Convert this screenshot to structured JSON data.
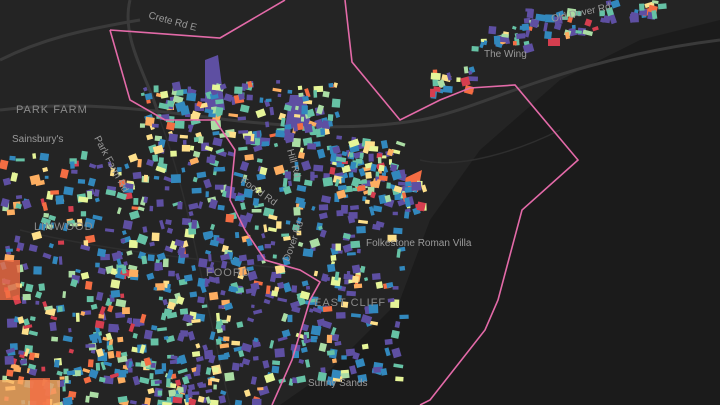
{
  "labels": {
    "crete_rd": "Crete Rd E",
    "old_dover_rd": "Old Dover Rd",
    "the_wing": "The Wing",
    "park_farm": "PARK FARM",
    "sainsburys": "Sainsbury's",
    "park_farm_rd": "Park Farm Rd",
    "hill_rd": "Hill Rd",
    "foord_rd": "Foord Rd",
    "dover_rd": "Dover Rd",
    "linwood": "LINWOOD",
    "foord": "FOORD",
    "east_cliff": "EAST CLIFF",
    "roman_villa": "Folkestone Roman Villa",
    "sunny_sands": "Sunny Sands"
  }
}
